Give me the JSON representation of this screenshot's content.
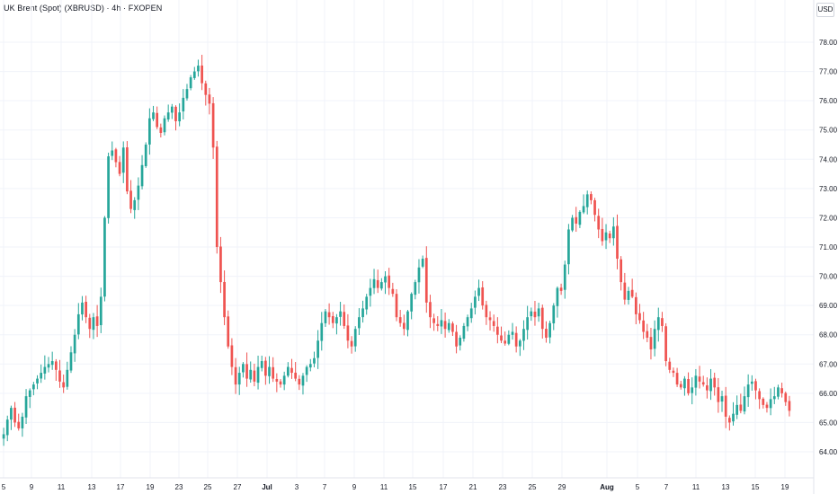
{
  "header": {
    "title": "UK Brent (Spot) (XBRUSD) · 4h · FXOPEN",
    "currency": "USD"
  },
  "colors": {
    "up": "#26a69a",
    "down": "#ef5350",
    "grid": "#f0f3fa",
    "text": "#131722"
  },
  "chart_data": {
    "type": "candlestick",
    "symbol": "XBRUSD",
    "timeframe": "4h",
    "grid": true,
    "y_axis": {
      "position": "right",
      "ylim": [
        63.6,
        78.6
      ],
      "ticks": [
        "64.00",
        "65.00",
        "66.00",
        "67.00",
        "68.00",
        "69.00",
        "70.00",
        "71.00",
        "72.00",
        "73.00",
        "74.00",
        "75.00",
        "76.00",
        "77.00",
        "78.00"
      ]
    },
    "x_axis": {
      "ticks": [
        {
          "label": "5",
          "bold": false
        },
        {
          "label": "9",
          "bold": false
        },
        {
          "label": "11",
          "bold": false
        },
        {
          "label": "13",
          "bold": false
        },
        {
          "label": "17",
          "bold": false
        },
        {
          "label": "19",
          "bold": false
        },
        {
          "label": "23",
          "bold": false
        },
        {
          "label": "25",
          "bold": false
        },
        {
          "label": "27",
          "bold": false
        },
        {
          "label": "Jul",
          "bold": true
        },
        {
          "label": "3",
          "bold": false
        },
        {
          "label": "7",
          "bold": false
        },
        {
          "label": "9",
          "bold": false
        },
        {
          "label": "11",
          "bold": false
        },
        {
          "label": "15",
          "bold": false
        },
        {
          "label": "17",
          "bold": false
        },
        {
          "label": "21",
          "bold": false
        },
        {
          "label": "23",
          "bold": false
        },
        {
          "label": "25",
          "bold": false
        },
        {
          "label": "29",
          "bold": false
        },
        {
          "label": "Aug",
          "bold": true
        },
        {
          "label": "5",
          "bold": false
        },
        {
          "label": "7",
          "bold": false
        },
        {
          "label": "11",
          "bold": false
        },
        {
          "label": "13",
          "bold": false
        },
        {
          "label": "15",
          "bold": false
        },
        {
          "label": "19",
          "bold": false
        }
      ]
    },
    "series": [
      {
        "values": [
          64.6,
          65.1,
          65.5,
          65.0,
          64.8,
          65.2,
          65.9,
          66.1,
          66.3,
          66.5,
          66.7,
          66.9,
          67.0,
          67.1,
          66.8,
          66.4,
          66.2,
          66.8,
          67.4,
          68.0,
          68.7,
          69.1,
          68.6,
          68.2,
          68.6,
          68.3,
          69.3,
          72.0,
          74.1,
          74.3,
          73.9,
          73.5,
          74.4,
          72.9,
          72.3,
          72.6,
          73.1,
          73.8,
          74.5,
          75.4,
          75.6,
          75.1,
          74.9,
          75.4,
          75.6,
          75.8,
          75.3,
          75.6,
          76.1,
          76.4,
          76.8,
          77.0,
          77.2,
          76.6,
          76.2,
          75.9,
          74.4,
          71.0,
          69.8,
          68.6,
          67.6,
          66.9,
          66.3,
          66.7,
          67.0,
          66.5,
          66.8,
          66.4,
          66.9,
          67.1,
          66.6,
          66.9,
          66.5,
          66.4,
          66.3,
          66.6,
          66.9,
          66.7,
          66.5,
          66.3,
          66.6,
          66.9,
          67.0,
          67.2,
          67.8,
          68.4,
          68.8,
          68.6,
          68.4,
          68.6,
          68.8,
          68.3,
          67.8,
          67.6,
          68.2,
          68.6,
          68.9,
          69.3,
          69.6,
          69.9,
          69.6,
          69.8,
          70.0,
          69.6,
          69.4,
          68.6,
          68.4,
          68.2,
          68.8,
          69.4,
          69.8,
          70.3,
          70.6,
          69.1,
          68.6,
          68.4,
          68.3,
          68.5,
          68.2,
          68.4,
          68.1,
          67.6,
          67.9,
          68.3,
          68.6,
          68.9,
          69.3,
          69.6,
          69.0,
          68.6,
          68.5,
          68.3,
          68.0,
          67.8,
          67.7,
          68.0,
          68.1,
          67.6,
          67.8,
          68.2,
          68.6,
          68.8,
          68.6,
          68.9,
          68.2,
          67.9,
          68.4,
          69.0,
          69.6,
          69.5,
          70.4,
          71.6,
          72.0,
          71.8,
          72.2,
          72.4,
          72.8,
          72.6,
          72.1,
          71.6,
          71.2,
          71.5,
          71.3,
          71.7,
          70.6,
          69.8,
          69.2,
          69.5,
          69.3,
          68.7,
          68.5,
          68.1,
          67.9,
          67.5,
          68.2,
          68.6,
          68.3,
          67.1,
          66.8,
          66.7,
          66.3,
          66.2,
          66.5,
          66.0,
          66.2,
          66.6,
          66.4,
          66.3,
          66.1,
          66.5,
          66.2,
          65.7,
          65.9,
          65.2,
          65.0,
          65.3,
          65.6,
          65.4,
          65.9,
          66.3,
          66.4,
          66.1,
          65.8,
          65.6,
          65.5,
          65.8,
          65.9,
          66.2,
          66.0,
          65.7,
          65.4
        ]
      }
    ]
  }
}
